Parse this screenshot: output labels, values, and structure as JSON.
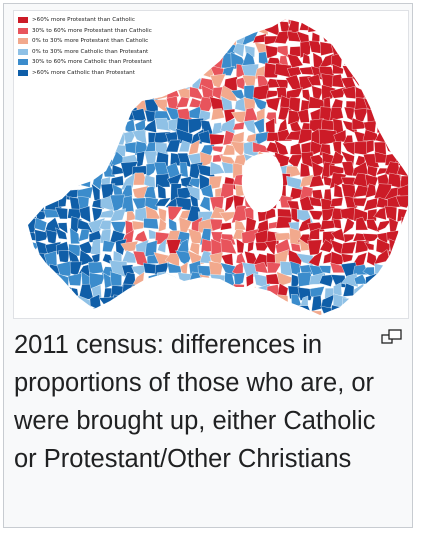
{
  "map": {
    "legend": [
      {
        "label": ">60% more Protestant than Catholic",
        "color": "#cc1b27"
      },
      {
        "label": "30% to 60% more Protestant than Catholic",
        "color": "#e8545c"
      },
      {
        "label": "0% to 30% more Protestant than Catholic",
        "color": "#f2a98d"
      },
      {
        "label": "0% to 30% more Catholic than Protestant",
        "color": "#8fc1e6"
      },
      {
        "label": "30% to 60% more Catholic than Protestant",
        "color": "#3b8ccc"
      },
      {
        "label": ">60% more Catholic than Protestant",
        "color": "#0f5ea8"
      }
    ],
    "lake_color": "#ffffff"
  },
  "caption": "2011 census: differences in proportions of those who are, or were brought up, either Catholic or Protestant/Other Christians",
  "enlarge_icon": "enlarge-icon"
}
